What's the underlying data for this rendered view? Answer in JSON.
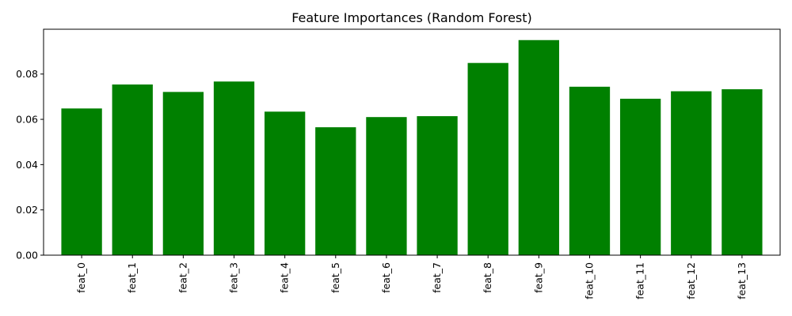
{
  "chart_data": {
    "type": "bar",
    "title": "Feature Importances (Random Forest)",
    "xlabel": "",
    "ylabel": "",
    "categories": [
      "feat_0",
      "feat_1",
      "feat_2",
      "feat_3",
      "feat_4",
      "feat_5",
      "feat_6",
      "feat_7",
      "feat_8",
      "feat_9",
      "feat_10",
      "feat_11",
      "feat_12",
      "feat_13"
    ],
    "values": [
      0.0648,
      0.0754,
      0.0721,
      0.0767,
      0.0634,
      0.0565,
      0.061,
      0.0614,
      0.0849,
      0.095,
      0.0744,
      0.0691,
      0.0724,
      0.0733
    ],
    "yticks": [
      0.0,
      0.02,
      0.04,
      0.06,
      0.08
    ],
    "ytick_labels": [
      "0.00",
      "0.02",
      "0.04",
      "0.06",
      "0.08"
    ],
    "ylim": [
      0,
      0.0998
    ],
    "bar_color": "#008000",
    "grid": false,
    "legend": "none"
  }
}
